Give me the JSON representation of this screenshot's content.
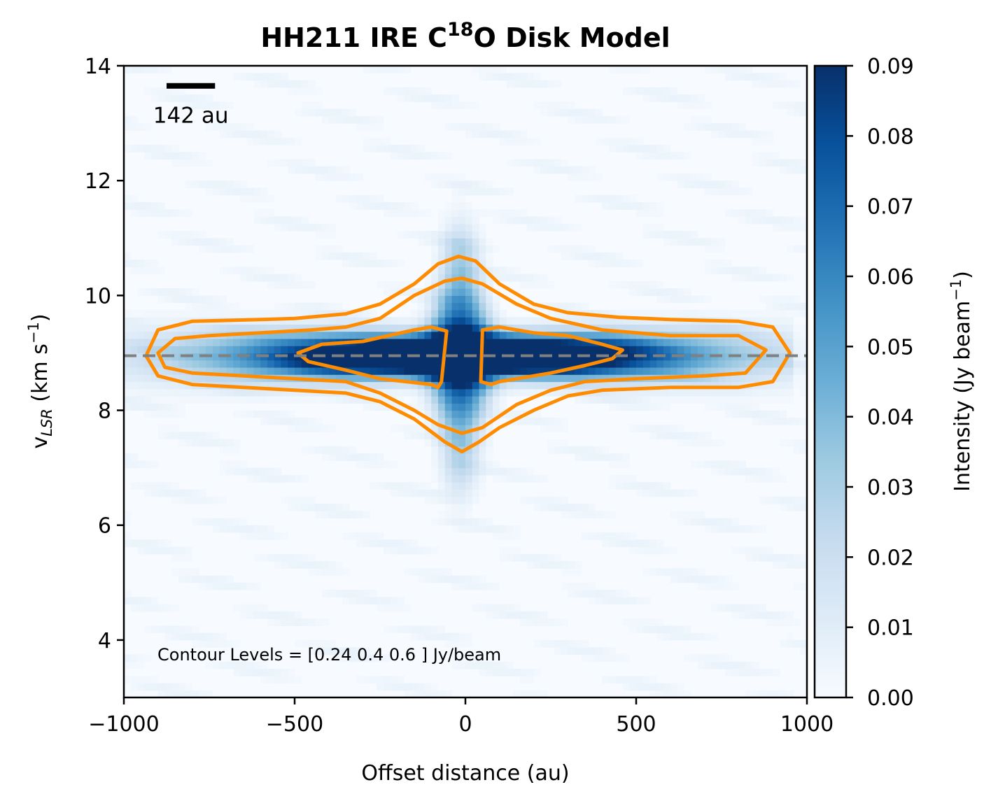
{
  "chart_data": {
    "type": "heatmap",
    "title": {
      "prefix": "HH211 IRE C",
      "superscript": "18",
      "suffix": "O Disk Model"
    },
    "xlabel": "Offset distance (au)",
    "ylabel": {
      "main": "v",
      "subscript": "LSR",
      "unit_start": " (km s",
      "unit_sup": "−1",
      "unit_end": ")"
    },
    "xlim": [
      -1000,
      1000
    ],
    "ylim": [
      3,
      14
    ],
    "x_ticks": [
      -1000,
      -500,
      0,
      500,
      1000
    ],
    "x_tick_labels": [
      "−1000",
      "−500",
      "0",
      "500",
      "1000"
    ],
    "y_ticks": [
      4,
      6,
      8,
      10,
      12,
      14
    ],
    "y_tick_labels": [
      "4",
      "6",
      "8",
      "10",
      "12",
      "14"
    ],
    "colormap": "Blues",
    "colorbar": {
      "label_start": "Intensity (Jy beam",
      "label_sup": "−1",
      "label_end": ")",
      "range": [
        0,
        0.09
      ],
      "ticks": [
        0,
        0.01,
        0.02,
        0.03,
        0.04,
        0.05,
        0.06,
        0.07,
        0.08,
        0.09
      ],
      "tick_labels": [
        "0.00",
        "0.01",
        "0.02",
        "0.03",
        "0.04",
        "0.05",
        "0.06",
        "0.07",
        "0.08",
        "0.09"
      ]
    },
    "systemic_velocity": 8.95,
    "scale_bar": {
      "label": "142 au",
      "length_au": 142,
      "x_start_au": -875,
      "y_vel": 13.65
    },
    "contour_annotation": "Contour Levels = [0.24 0.4  0.6 ] Jy/beam",
    "contour_levels": [
      0.24,
      0.4,
      0.6
    ],
    "contour_color": "#ff8c00",
    "contours": [
      {
        "level": 0.24,
        "points": [
          [
            -935,
            8.95
          ],
          [
            -900,
            9.4
          ],
          [
            -800,
            9.55
          ],
          [
            -600,
            9.58
          ],
          [
            -500,
            9.6
          ],
          [
            -350,
            9.68
          ],
          [
            -250,
            9.85
          ],
          [
            -150,
            10.2
          ],
          [
            -80,
            10.55
          ],
          [
            -20,
            10.68
          ],
          [
            30,
            10.6
          ],
          [
            100,
            10.2
          ],
          [
            200,
            9.85
          ],
          [
            300,
            9.7
          ],
          [
            450,
            9.62
          ],
          [
            600,
            9.58
          ],
          [
            800,
            9.55
          ],
          [
            900,
            9.45
          ],
          [
            950,
            9.0
          ],
          [
            900,
            8.5
          ],
          [
            800,
            8.4
          ],
          [
            600,
            8.4
          ],
          [
            400,
            8.35
          ],
          [
            300,
            8.25
          ],
          [
            200,
            8.0
          ],
          [
            100,
            7.7
          ],
          [
            40,
            7.45
          ],
          [
            -10,
            7.28
          ],
          [
            -60,
            7.45
          ],
          [
            -150,
            7.85
          ],
          [
            -250,
            8.15
          ],
          [
            -350,
            8.3
          ],
          [
            -500,
            8.35
          ],
          [
            -650,
            8.4
          ],
          [
            -800,
            8.45
          ],
          [
            -900,
            8.6
          ]
        ]
      },
      {
        "level": 0.4,
        "points": [
          [
            -900,
            9.0
          ],
          [
            -850,
            9.25
          ],
          [
            -750,
            9.3
          ],
          [
            -600,
            9.35
          ],
          [
            -450,
            9.4
          ],
          [
            -350,
            9.45
          ],
          [
            -250,
            9.6
          ],
          [
            -150,
            10.0
          ],
          [
            -60,
            10.25
          ],
          [
            -10,
            10.3
          ],
          [
            50,
            10.2
          ],
          [
            150,
            9.85
          ],
          [
            250,
            9.6
          ],
          [
            400,
            9.4
          ],
          [
            600,
            9.3
          ],
          [
            800,
            9.3
          ],
          [
            880,
            9.05
          ],
          [
            820,
            8.65
          ],
          [
            700,
            8.6
          ],
          [
            500,
            8.55
          ],
          [
            350,
            8.5
          ],
          [
            250,
            8.35
          ],
          [
            150,
            8.1
          ],
          [
            50,
            7.7
          ],
          [
            -10,
            7.6
          ],
          [
            -80,
            7.75
          ],
          [
            -150,
            8.0
          ],
          [
            -250,
            8.3
          ],
          [
            -350,
            8.5
          ],
          [
            -500,
            8.55
          ],
          [
            -650,
            8.6
          ],
          [
            -800,
            8.65
          ],
          [
            -880,
            8.75
          ]
        ]
      },
      {
        "level": 0.6,
        "points": [
          [
            -490,
            9.0
          ],
          [
            -420,
            9.15
          ],
          [
            -300,
            9.2
          ],
          [
            -150,
            9.4
          ],
          [
            -100,
            9.45
          ],
          [
            -55,
            9.38
          ],
          [
            -70,
            8.5
          ],
          [
            -80,
            8.4
          ],
          [
            -100,
            8.45
          ],
          [
            -250,
            8.55
          ],
          [
            -350,
            8.7
          ],
          [
            -460,
            8.85
          ]
        ]
      },
      {
        "level": 0.6,
        "points": [
          [
            50,
            9.4
          ],
          [
            100,
            9.45
          ],
          [
            200,
            9.35
          ],
          [
            300,
            9.3
          ],
          [
            400,
            9.15
          ],
          [
            460,
            9.05
          ],
          [
            430,
            8.9
          ],
          [
            350,
            8.78
          ],
          [
            250,
            8.65
          ],
          [
            100,
            8.5
          ],
          [
            75,
            8.45
          ],
          [
            45,
            8.5
          ]
        ]
      }
    ]
  }
}
